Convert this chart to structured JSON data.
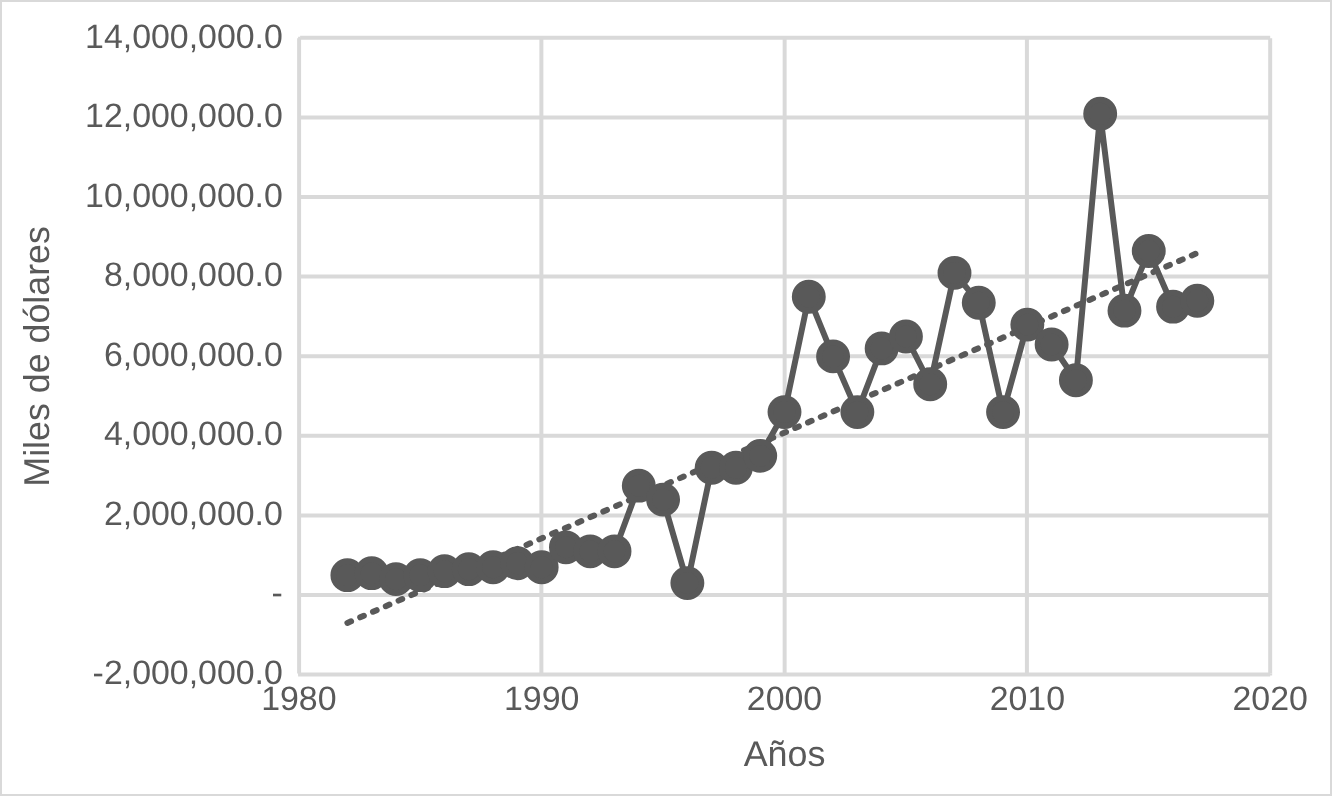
{
  "chart_data": {
    "type": "line",
    "xlabel": "Años",
    "ylabel": "Miles de dólares",
    "x": [
      1982,
      1983,
      1984,
      1985,
      1986,
      1987,
      1988,
      1989,
      1990,
      1991,
      1992,
      1993,
      1994,
      1995,
      1996,
      1997,
      1998,
      1999,
      2000,
      2001,
      2002,
      2003,
      2004,
      2005,
      2006,
      2007,
      2008,
      2009,
      2010,
      2011,
      2012,
      2013,
      2014,
      2015,
      2016,
      2017
    ],
    "series": [
      {
        "color": "#595959",
        "marker": "circle",
        "line_style": "solid",
        "values": [
          500000,
          550000,
          400000,
          500000,
          600000,
          650000,
          700000,
          800000,
          700000,
          1200000,
          1100000,
          1100000,
          2750000,
          2400000,
          300000,
          3200000,
          3200000,
          3500000,
          4600000,
          7500000,
          6000000,
          4600000,
          6200000,
          6500000,
          5300000,
          8100000,
          7350000,
          4600000,
          6800000,
          6300000,
          5400000,
          12100000,
          7150000,
          8650000,
          7250000,
          7400000
        ]
      },
      {
        "type": "line",
        "color": "#595959",
        "marker": "none",
        "line_style": "dotted",
        "x": [
          1982,
          2017
        ],
        "values": [
          -700000,
          8600000
        ]
      }
    ],
    "xlim": [
      1980,
      2020
    ],
    "xticks": [
      1980,
      1990,
      2000,
      2010,
      2020
    ],
    "ylim": [
      -2000000,
      14000000
    ],
    "yticks": [
      {
        "value": -2000000,
        "label": "-2,000,000.0"
      },
      {
        "value": 0,
        "label": "-"
      },
      {
        "value": 2000000,
        "label": "2,000,000.0"
      },
      {
        "value": 4000000,
        "label": "4,000,000.0"
      },
      {
        "value": 6000000,
        "label": "6,000,000.0"
      },
      {
        "value": 8000000,
        "label": "8,000,000.0"
      },
      {
        "value": 10000000,
        "label": "10,000,000.0"
      },
      {
        "value": 12000000,
        "label": "12,000,000.0"
      },
      {
        "value": 14000000,
        "label": "14,000,000.0"
      }
    ],
    "grid": true,
    "legend": false
  }
}
